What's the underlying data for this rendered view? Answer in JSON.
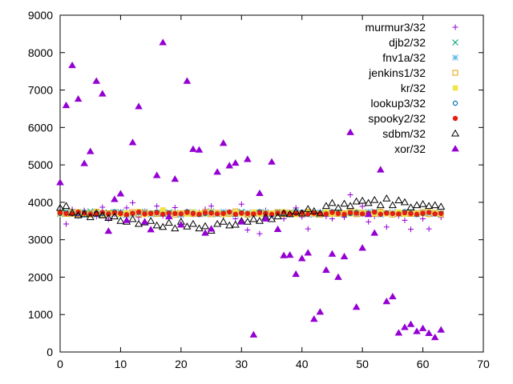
{
  "chart_data": {
    "type": "scatter",
    "title": "",
    "xlabel": "",
    "ylabel": "",
    "xlim": [
      0,
      70
    ],
    "ylim": [
      0,
      9000
    ],
    "xticks": [
      0,
      10,
      20,
      30,
      40,
      50,
      60,
      70
    ],
    "yticks": [
      0,
      1000,
      2000,
      3000,
      4000,
      5000,
      6000,
      7000,
      8000,
      9000
    ],
    "grid": false,
    "legend_position": "top-right",
    "series": [
      {
        "name": "murmur3/32",
        "marker": "plus",
        "color": "#9400d3",
        "y": [
          3720,
          3420,
          3810,
          3640,
          3780,
          3700,
          3620,
          3870,
          3550,
          3680,
          3740,
          3850,
          3990,
          3600,
          3760,
          3700,
          3900,
          3640,
          3710,
          3860,
          3640,
          3750,
          3680,
          3730,
          3810,
          3900,
          3700,
          3650,
          3740,
          3560,
          3950,
          3260,
          3710,
          3160,
          3780,
          3650,
          3720,
          3560,
          3700,
          3850,
          3610,
          3290,
          3680,
          3740,
          3620,
          3560,
          3700,
          3600,
          4200,
          3680,
          3890,
          3480,
          3630,
          3750,
          3340,
          3700,
          3640,
          3520,
          3280,
          3690,
          3560,
          3290,
          3700,
          3600
        ]
      },
      {
        "name": "djb2/32",
        "marker": "x",
        "color": "#009e73",
        "y": [
          3700,
          3750,
          3680,
          3720,
          3690,
          3760,
          3670,
          3710,
          3730,
          3690,
          3740,
          3660,
          3700,
          3720,
          3750,
          3680,
          3710,
          3690,
          3730,
          3700,
          3670,
          3720,
          3740,
          3690,
          3710,
          3760,
          3680,
          3700,
          3720,
          3690,
          3750,
          3670,
          3710,
          3730,
          3690,
          3700,
          3740,
          3680,
          3720,
          3710,
          3690,
          3750,
          3670,
          3700,
          3730,
          3690,
          3710,
          3680,
          3740,
          3700,
          3720,
          3690,
          3750,
          3670,
          3710,
          3730,
          3690,
          3700,
          3740,
          3680,
          3720,
          3710,
          3690,
          3700
        ]
      },
      {
        "name": "fnv1a/32",
        "marker": "star",
        "color": "#56b4e9",
        "y": [
          3680,
          3720,
          3700,
          3750,
          3660,
          3710,
          3730,
          3690,
          3700,
          3740,
          3670,
          3720,
          3690,
          3710,
          3750,
          3680,
          3700,
          3730,
          3690,
          3720,
          3660,
          3710,
          3740,
          3700,
          3680,
          3720,
          3690,
          3750,
          3700,
          3670,
          3710,
          3730,
          3690,
          3700,
          3740,
          3680,
          3720,
          3710,
          3690,
          3750,
          3700,
          3670,
          3710,
          3730,
          3690,
          3700,
          3740,
          3680,
          3720,
          3700,
          3690,
          3750,
          3710,
          3670,
          3700,
          3730,
          3690,
          3710,
          3740,
          3680,
          3720,
          3700,
          3690,
          3710
        ]
      },
      {
        "name": "jenkins1/32",
        "marker": "square-open",
        "color": "#e69f00",
        "y": [
          3710,
          3690,
          3740,
          3680,
          3720,
          3700,
          3750,
          3670,
          3710,
          3730,
          3690,
          3700,
          3740,
          3680,
          3720,
          3710,
          3690,
          3750,
          3700,
          3670,
          3710,
          3730,
          3690,
          3700,
          3740,
          3680,
          3720,
          3700,
          3690,
          3760,
          3710,
          3670,
          3700,
          3730,
          3690,
          3710,
          3740,
          3680,
          3720,
          3700,
          3690,
          3750,
          3710,
          3670,
          3700,
          3730,
          3690,
          3710,
          3740,
          3680,
          3720,
          3700,
          3690,
          3750,
          3710,
          3670,
          3700,
          3730,
          3690,
          3710,
          3740,
          3680,
          3720,
          3700
        ]
      },
      {
        "name": "kr/32",
        "marker": "square-filled",
        "color": "#f0e442",
        "y": [
          3690,
          3720,
          3680,
          3750,
          3700,
          3660,
          3730,
          3710,
          3690,
          3740,
          3680,
          3720,
          3700,
          3760,
          3670,
          3710,
          3730,
          3800,
          3690,
          3720,
          3700,
          3680,
          3740,
          3710,
          3690,
          3750,
          3700,
          3670,
          3720,
          3730,
          3690,
          3700,
          3740,
          3680,
          3720,
          3710,
          3690,
          3750,
          3700,
          3670,
          3710,
          3730,
          3690,
          3700,
          3740,
          3680,
          3720,
          3700,
          3690,
          3750,
          3710,
          3670,
          3700,
          3730,
          3690,
          3710,
          3740,
          3680,
          3720,
          3700,
          3690,
          3750,
          3710,
          3670
        ]
      },
      {
        "name": "lookup3/32",
        "marker": "circle-open",
        "color": "#0072b2",
        "y": [
          3700,
          3730,
          3690,
          3710,
          3740,
          3680,
          3720,
          3700,
          3690,
          3750,
          3710,
          3670,
          3700,
          3730,
          3690,
          3710,
          3740,
          3680,
          3720,
          3700,
          3690,
          3750,
          3710,
          3670,
          3700,
          3730,
          3690,
          3710,
          3740,
          3680,
          3720,
          3700,
          3690,
          3750,
          3710,
          3670,
          3700,
          3730,
          3690,
          3710,
          3740,
          3680,
          3720,
          3700,
          3690,
          3750,
          3710,
          3670,
          3700,
          3730,
          3690,
          3710,
          3740,
          3680,
          3720,
          3700,
          3690,
          3750,
          3710,
          3670,
          3700,
          3730,
          3690,
          3710
        ]
      },
      {
        "name": "spooky2/32",
        "marker": "circle-filled",
        "color": "#e51e10",
        "y": [
          3720,
          3700,
          3690,
          3740,
          3710,
          3680,
          3700,
          3730,
          3690,
          3720,
          3700,
          3670,
          3710,
          3740,
          3690,
          3700,
          3720,
          3680,
          3710,
          3700,
          3690,
          3730,
          3700,
          3680,
          3720,
          3710,
          3690,
          3700,
          3740,
          3680,
          3710,
          3700,
          3690,
          3720,
          3700,
          3680,
          3710,
          3730,
          3690,
          3700,
          3720,
          3680,
          3710,
          3700,
          3690,
          3730,
          3700,
          3680,
          3720,
          3710,
          3690,
          3700,
          3740,
          3680,
          3710,
          3700,
          3690,
          3720,
          3700,
          3680,
          3710,
          3730,
          3690,
          3700
        ]
      },
      {
        "name": "sdbm/32",
        "marker": "triangle-open",
        "color": "#000000",
        "y": [
          3850,
          3900,
          3720,
          3650,
          3680,
          3600,
          3700,
          3650,
          3580,
          3620,
          3500,
          3480,
          3550,
          3420,
          3460,
          3500,
          3380,
          3340,
          3450,
          3300,
          3480,
          3350,
          3420,
          3300,
          3360,
          3240,
          3420,
          3480,
          3380,
          3400,
          3500,
          3480,
          3550,
          3500,
          3600,
          3550,
          3620,
          3700,
          3680,
          3750,
          3700,
          3820,
          3760,
          3700,
          3900,
          3980,
          3850,
          3960,
          3900,
          4020,
          4040,
          3980,
          4060,
          3920,
          4100,
          3920,
          4050,
          4000,
          3860,
          3920,
          3950,
          3900,
          3920,
          3880
        ]
      },
      {
        "name": "xor/32",
        "marker": "triangle-filled",
        "color": "#9400d3",
        "y": [
          4530,
          6590,
          7660,
          6760,
          5040,
          5360,
          7240,
          6900,
          3230,
          4080,
          4230,
          3520,
          5600,
          6560,
          3480,
          3270,
          4720,
          8270,
          3620,
          4620,
          3400,
          7240,
          5420,
          5400,
          3180,
          3290,
          4810,
          5580,
          4980,
          5050,
          3480,
          5150,
          460,
          4240,
          3560,
          5080,
          3280,
          2580,
          2590,
          2080,
          2500,
          2650,
          880,
          1070,
          2190,
          2620,
          2000,
          2550,
          5870,
          1200,
          2780,
          3680,
          3180,
          4870,
          1350,
          1480,
          510,
          660,
          740,
          550,
          630,
          500,
          390,
          590
        ]
      }
    ]
  }
}
